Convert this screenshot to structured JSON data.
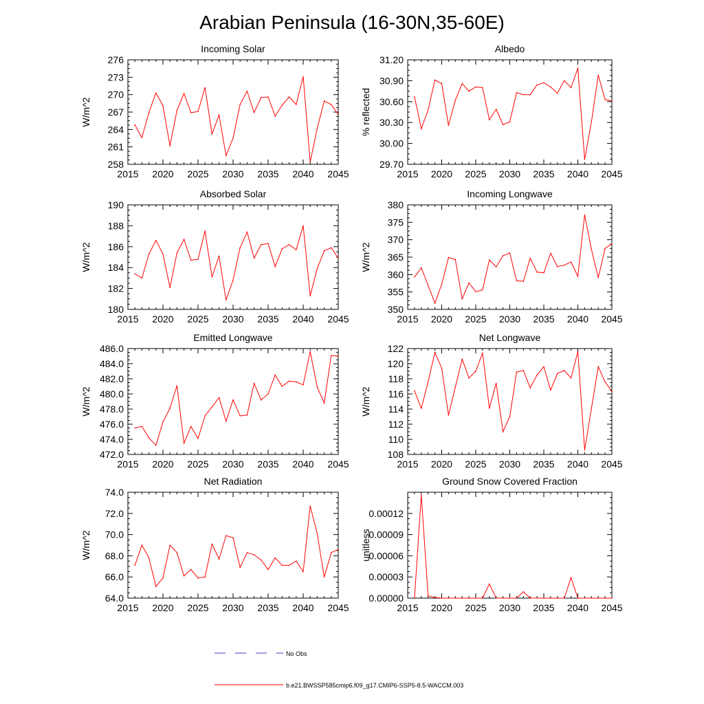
{
  "page_title": "Arabian Peninsula (16-30N,35-60E)",
  "colors": {
    "series": "#ff0000",
    "obs": "#3f3fbf",
    "axis": "#000000"
  },
  "legend": {
    "obs_label": "No Obs",
    "model_label": "b.e21.BWSSP585cmip6.f09_g17.CMIP6-SSP5-8.5-WACCM.003"
  },
  "chart_data": [
    {
      "type": "line",
      "title": "Incoming Solar",
      "ylabel": "W/m^2",
      "xlim": [
        2015,
        2045
      ],
      "xticks": [
        2015,
        2020,
        2025,
        2030,
        2035,
        2040,
        2045
      ],
      "xtick_labels": [
        "2015",
        "2020",
        "2025",
        "2030",
        "2035",
        "2040",
        "2045"
      ],
      "ylim": [
        258,
        276
      ],
      "yticks": [
        258,
        261,
        264,
        267,
        270,
        273,
        276
      ],
      "ytick_labels": [
        "258",
        "261",
        "264",
        "267",
        "270",
        "273",
        "276"
      ],
      "x": [
        2016,
        2017,
        2018,
        2019,
        2020,
        2021,
        2022,
        2023,
        2024,
        2025,
        2026,
        2027,
        2028,
        2029,
        2030,
        2031,
        2032,
        2033,
        2034,
        2035,
        2036,
        2037,
        2038,
        2039,
        2040,
        2041,
        2042,
        2043,
        2044,
        2045
      ],
      "values": [
        264.8,
        262.6,
        266.9,
        270.3,
        268.1,
        261.2,
        267.3,
        270.2,
        266.9,
        267.1,
        271.2,
        263.2,
        266.5,
        259.5,
        262.5,
        268.3,
        270.6,
        266.9,
        269.5,
        269.6,
        266.3,
        268.2,
        269.6,
        268.3,
        273.1,
        258.4,
        264.2,
        268.9,
        268.3,
        266.6
      ]
    },
    {
      "type": "line",
      "title": "Albedo",
      "ylabel": "% reflected",
      "xlim": [
        2015,
        2045
      ],
      "xticks": [
        2015,
        2020,
        2025,
        2030,
        2035,
        2040,
        2045
      ],
      "xtick_labels": [
        "2015",
        "2020",
        "2025",
        "2030",
        "2035",
        "2040",
        "2045"
      ],
      "ylim": [
        29.7,
        31.2
      ],
      "yticks": [
        29.7,
        30.0,
        30.3,
        30.6,
        30.9,
        31.2
      ],
      "ytick_labels": [
        "29.70",
        "30.00",
        "30.30",
        "30.60",
        "30.90",
        "31.20"
      ],
      "x": [
        2016,
        2017,
        2018,
        2019,
        2020,
        2021,
        2022,
        2023,
        2024,
        2025,
        2026,
        2027,
        2028,
        2029,
        2030,
        2031,
        2032,
        2033,
        2034,
        2035,
        2036,
        2037,
        2038,
        2039,
        2040,
        2041,
        2042,
        2043,
        2044,
        2045
      ],
      "values": [
        30.67,
        30.21,
        30.48,
        30.91,
        30.86,
        30.26,
        30.62,
        30.86,
        30.75,
        30.81,
        30.8,
        30.34,
        30.49,
        30.27,
        30.31,
        30.73,
        30.7,
        30.7,
        30.84,
        30.87,
        30.81,
        30.72,
        30.9,
        30.8,
        31.08,
        29.77,
        30.31,
        30.98,
        30.63,
        30.61
      ]
    },
    {
      "type": "line",
      "title": "Absorbed Solar",
      "ylabel": "W/m^2",
      "xlim": [
        2015,
        2045
      ],
      "xticks": [
        2015,
        2020,
        2025,
        2030,
        2035,
        2040,
        2045
      ],
      "xtick_labels": [
        "2015",
        "2020",
        "2025",
        "2030",
        "2035",
        "2040",
        "2045"
      ],
      "ylim": [
        180,
        190
      ],
      "yticks": [
        180,
        182,
        184,
        186,
        188,
        190
      ],
      "ytick_labels": [
        "180",
        "182",
        "184",
        "186",
        "188",
        "190"
      ],
      "x": [
        2016,
        2017,
        2018,
        2019,
        2020,
        2021,
        2022,
        2023,
        2024,
        2025,
        2026,
        2027,
        2028,
        2029,
        2030,
        2031,
        2032,
        2033,
        2034,
        2035,
        2036,
        2037,
        2038,
        2039,
        2040,
        2041,
        2042,
        2043,
        2044,
        2045
      ],
      "values": [
        183.4,
        183.0,
        185.3,
        186.6,
        185.3,
        182.1,
        185.4,
        186.7,
        184.7,
        184.8,
        187.5,
        183.1,
        185.1,
        180.9,
        182.8,
        185.9,
        187.4,
        184.9,
        186.2,
        186.3,
        184.1,
        185.8,
        186.2,
        185.7,
        188.0,
        181.3,
        183.9,
        185.6,
        185.9,
        184.9
      ]
    },
    {
      "type": "line",
      "title": "Incoming Longwave",
      "ylabel": "W/m^2",
      "xlim": [
        2015,
        2045
      ],
      "xticks": [
        2015,
        2020,
        2025,
        2030,
        2035,
        2040,
        2045
      ],
      "xtick_labels": [
        "2015",
        "2020",
        "2025",
        "2030",
        "2035",
        "2040",
        "2045"
      ],
      "ylim": [
        350,
        380
      ],
      "yticks": [
        350,
        355,
        360,
        365,
        370,
        375,
        380
      ],
      "ytick_labels": [
        "350",
        "355",
        "360",
        "365",
        "370",
        "375",
        "380"
      ],
      "x": [
        2016,
        2017,
        2018,
        2019,
        2020,
        2021,
        2022,
        2023,
        2024,
        2025,
        2026,
        2027,
        2028,
        2029,
        2030,
        2031,
        2032,
        2033,
        2034,
        2035,
        2036,
        2037,
        2038,
        2039,
        2040,
        2041,
        2042,
        2043,
        2044,
        2045
      ],
      "values": [
        359.3,
        361.9,
        356.9,
        351.8,
        357.2,
        364.9,
        364.3,
        353.0,
        357.6,
        355.1,
        355.6,
        364.2,
        362.2,
        365.4,
        366.2,
        358.2,
        358.1,
        364.7,
        360.7,
        360.5,
        366.1,
        362.3,
        362.7,
        363.6,
        359.5,
        377.1,
        367.2,
        359.1,
        367.5,
        368.8
      ]
    },
    {
      "type": "line",
      "title": "Emitted Longwave",
      "ylabel": "W/m^2",
      "xlim": [
        2015,
        2045
      ],
      "xticks": [
        2015,
        2020,
        2025,
        2030,
        2035,
        2040,
        2045
      ],
      "xtick_labels": [
        "2015",
        "2020",
        "2025",
        "2030",
        "2035",
        "2040",
        "2045"
      ],
      "ylim": [
        472,
        486
      ],
      "yticks": [
        472,
        474,
        476,
        478,
        480,
        482,
        484,
        486
      ],
      "ytick_labels": [
        "472.0",
        "474.0",
        "476.0",
        "478.0",
        "480.0",
        "482.0",
        "484.0",
        "486.0"
      ],
      "x": [
        2016,
        2017,
        2018,
        2019,
        2020,
        2021,
        2022,
        2023,
        2024,
        2025,
        2026,
        2027,
        2028,
        2029,
        2030,
        2031,
        2032,
        2033,
        2034,
        2035,
        2036,
        2037,
        2038,
        2039,
        2040,
        2041,
        2042,
        2043,
        2044,
        2045
      ],
      "values": [
        475.5,
        475.7,
        474.2,
        473.2,
        476.3,
        478.1,
        481.1,
        473.5,
        475.7,
        474.1,
        477.1,
        478.3,
        479.5,
        476.4,
        479.2,
        477.1,
        477.2,
        481.4,
        479.2,
        480.0,
        482.5,
        481.0,
        481.7,
        481.6,
        481.2,
        485.6,
        480.9,
        478.8,
        485.1,
        485.0
      ]
    },
    {
      "type": "line",
      "title": "Net Longwave",
      "ylabel": "W/m^2",
      "xlim": [
        2015,
        2045
      ],
      "xticks": [
        2015,
        2020,
        2025,
        2030,
        2035,
        2040,
        2045
      ],
      "xtick_labels": [
        "2015",
        "2020",
        "2025",
        "2030",
        "2035",
        "2040",
        "2045"
      ],
      "ylim": [
        108,
        122
      ],
      "yticks": [
        108,
        110,
        112,
        114,
        116,
        118,
        120,
        122
      ],
      "ytick_labels": [
        "108",
        "110",
        "112",
        "114",
        "116",
        "118",
        "120",
        "122"
      ],
      "x": [
        2016,
        2017,
        2018,
        2019,
        2020,
        2021,
        2022,
        2023,
        2024,
        2025,
        2026,
        2027,
        2028,
        2029,
        2030,
        2031,
        2032,
        2033,
        2034,
        2035,
        2036,
        2037,
        2038,
        2039,
        2040,
        2041,
        2042,
        2043,
        2044,
        2045
      ],
      "values": [
        116.4,
        114.1,
        117.6,
        121.5,
        119.4,
        113.2,
        116.9,
        120.6,
        118.1,
        119.0,
        121.4,
        114.1,
        117.4,
        111.0,
        113.0,
        118.9,
        119.1,
        116.8,
        118.5,
        119.6,
        116.5,
        118.7,
        119.1,
        118.1,
        121.6,
        108.6,
        114.1,
        119.6,
        117.6,
        116.3
      ]
    },
    {
      "type": "line",
      "title": "Net Radiation",
      "ylabel": "W/m^2",
      "xlim": [
        2015,
        2045
      ],
      "xticks": [
        2015,
        2020,
        2025,
        2030,
        2035,
        2040,
        2045
      ],
      "xtick_labels": [
        "2015",
        "2020",
        "2025",
        "2030",
        "2035",
        "2040",
        "2045"
      ],
      "ylim": [
        64,
        74
      ],
      "yticks": [
        64,
        66,
        68,
        70,
        72,
        74
      ],
      "ytick_labels": [
        "64.0",
        "66.0",
        "68.0",
        "70.0",
        "72.0",
        "74.0"
      ],
      "x": [
        2016,
        2017,
        2018,
        2019,
        2020,
        2021,
        2022,
        2023,
        2024,
        2025,
        2026,
        2027,
        2028,
        2029,
        2030,
        2031,
        2032,
        2033,
        2034,
        2035,
        2036,
        2037,
        2038,
        2039,
        2040,
        2041,
        2042,
        2043,
        2044,
        2045
      ],
      "values": [
        67.1,
        69.0,
        67.8,
        65.1,
        65.9,
        69.0,
        68.3,
        66.1,
        66.7,
        65.9,
        66.0,
        69.1,
        67.7,
        69.9,
        69.7,
        66.9,
        68.3,
        68.1,
        67.6,
        66.7,
        67.8,
        67.1,
        67.1,
        67.5,
        66.5,
        72.7,
        70.1,
        66.0,
        68.3,
        68.6
      ]
    },
    {
      "type": "line",
      "title": "Ground Snow Covered Fraction",
      "ylabel": "unitless",
      "xlim": [
        2015,
        2045
      ],
      "xticks": [
        2015,
        2020,
        2025,
        2030,
        2035,
        2040,
        2045
      ],
      "xtick_labels": [
        "2015",
        "2020",
        "2025",
        "2030",
        "2035",
        "2040",
        "2045"
      ],
      "ylim": [
        0,
        0.00015
      ],
      "yticks": [
        0,
        3e-05,
        6e-05,
        9e-05,
        0.00012
      ],
      "ytick_labels": [
        "0.00000",
        "0.00003",
        "0.00006",
        "0.00009",
        "0.00012"
      ],
      "x": [
        2016,
        2017,
        2018,
        2019,
        2020,
        2021,
        2022,
        2023,
        2024,
        2025,
        2026,
        2027,
        2028,
        2029,
        2030,
        2031,
        2032,
        2033,
        2034,
        2035,
        2036,
        2037,
        2038,
        2039,
        2040,
        2041,
        2042,
        2043,
        2044,
        2045
      ],
      "values": [
        0.0,
        0.000146,
        3e-06,
        1e-06,
        0.0,
        0.0,
        0.0,
        0.0,
        0.0,
        0.0,
        0.0,
        2e-05,
        0.0,
        0.0,
        0.0,
        0.0,
        9e-06,
        0.0,
        0.0,
        0.0,
        0.0,
        0.0,
        0.0,
        2.9e-05,
        0.0,
        0.0,
        0.0,
        0.0,
        0.0,
        0.0
      ]
    }
  ]
}
